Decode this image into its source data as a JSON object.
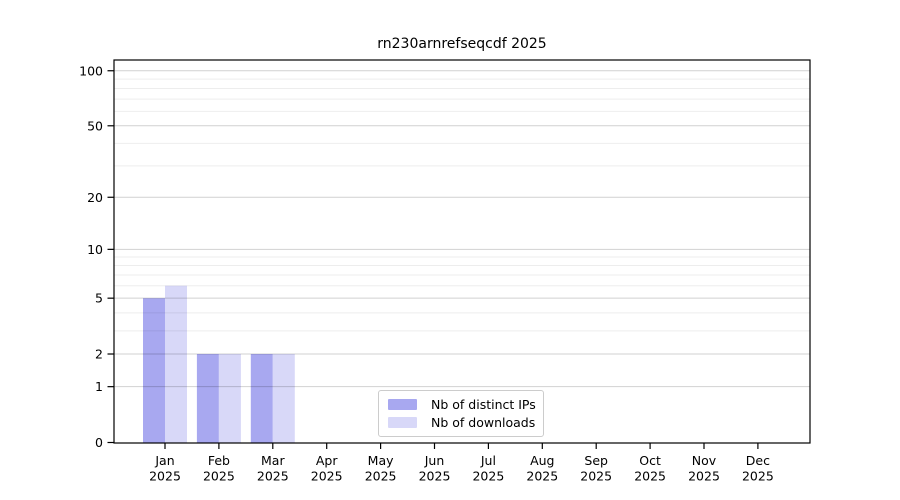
{
  "chart_data": {
    "type": "bar",
    "title": "rn230arnrefseqcdf 2025",
    "categories": [
      "Jan",
      "Feb",
      "Mar",
      "Apr",
      "May",
      "Jun",
      "Jul",
      "Aug",
      "Sep",
      "Oct",
      "Nov",
      "Dec"
    ],
    "category_year": "2025",
    "series": [
      {
        "name": "Nb of distinct IPs",
        "color": "#a8a8f0",
        "values": [
          5,
          2,
          2,
          0,
          0,
          0,
          0,
          0,
          0,
          0,
          0,
          0
        ]
      },
      {
        "name": "Nb of downloads",
        "color": "#d8d8f8",
        "values": [
          6,
          2,
          2,
          0,
          0,
          0,
          0,
          0,
          0,
          0,
          0,
          0
        ]
      }
    ],
    "xlabel": "",
    "ylabel": "",
    "yscale": "log1p",
    "ylim": [
      0,
      114
    ],
    "yticks": [
      0,
      1,
      2,
      5,
      10,
      20,
      50,
      100
    ],
    "yticks_minor": [
      3,
      4,
      6,
      7,
      8,
      9,
      30,
      40,
      60,
      70,
      80,
      90
    ],
    "grid": "both",
    "legend_position": "lower center"
  },
  "colors": {
    "spine": "#000000",
    "grid_major": "rgba(0,0,0,0.18)",
    "grid_minor": "rgba(0,0,0,0.07)",
    "tick_label": "#000000",
    "background": "#ffffff"
  }
}
